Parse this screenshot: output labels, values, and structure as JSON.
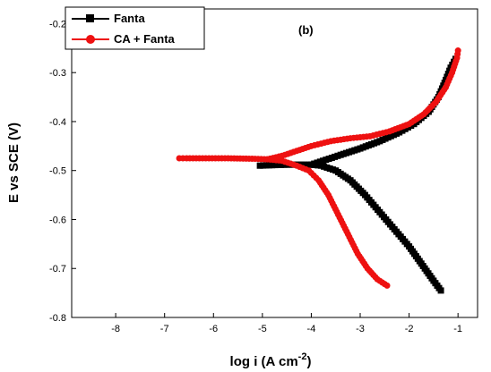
{
  "chart_data": {
    "type": "line",
    "panel_label": "(b)",
    "xlabel": "log i (A cm",
    "xlabel_sup": "-2",
    "xlabel_close": ")",
    "ylabel": "E vs SCE (V)",
    "xlim": [
      -8.9,
      -0.6
    ],
    "ylim": [
      -0.8,
      -0.17
    ],
    "xticks": [
      -8,
      -7,
      -6,
      -5,
      -4,
      -3,
      -2,
      -1
    ],
    "yticks": [
      -0.8,
      -0.7,
      -0.6,
      -0.5,
      -0.4,
      -0.3,
      -0.2
    ],
    "xtick_labels": [
      "-8",
      "-7",
      "-6",
      "-5",
      "-4",
      "-3",
      "-2",
      "-1"
    ],
    "ytick_labels": [
      "-0.8",
      "-0.7",
      "-0.6",
      "-0.5",
      "-0.4",
      "-0.3",
      "-0.2"
    ],
    "legend_position": "top-left",
    "grid": false,
    "series": [
      {
        "name": "Fanta",
        "color": "#000000",
        "marker": "square",
        "cathodic": [
          [
            -5.05,
            -0.49
          ],
          [
            -4.8,
            -0.489
          ],
          [
            -4.5,
            -0.488
          ],
          [
            -4.2,
            -0.488
          ],
          [
            -4.0,
            -0.488
          ],
          [
            -3.8,
            -0.49
          ],
          [
            -3.5,
            -0.5
          ],
          [
            -3.2,
            -0.52
          ],
          [
            -2.9,
            -0.55
          ],
          [
            -2.6,
            -0.585
          ],
          [
            -2.3,
            -0.62
          ],
          [
            -2.0,
            -0.655
          ],
          [
            -1.75,
            -0.69
          ],
          [
            -1.5,
            -0.725
          ],
          [
            -1.35,
            -0.745
          ]
        ],
        "anodic": [
          [
            -4.0,
            -0.488
          ],
          [
            -3.7,
            -0.478
          ],
          [
            -3.4,
            -0.468
          ],
          [
            -3.0,
            -0.455
          ],
          [
            -2.6,
            -0.44
          ],
          [
            -2.2,
            -0.422
          ],
          [
            -1.9,
            -0.405
          ],
          [
            -1.6,
            -0.38
          ],
          [
            -1.4,
            -0.35
          ],
          [
            -1.25,
            -0.315
          ],
          [
            -1.15,
            -0.29
          ],
          [
            -1.05,
            -0.272
          ]
        ]
      },
      {
        "name": "CA + Fanta",
        "color": "#ee1111",
        "marker": "circle",
        "cathodic": [
          [
            -6.7,
            -0.475
          ],
          [
            -6.55,
            -0.475
          ],
          [
            -5.7,
            -0.475
          ],
          [
            -5.15,
            -0.476
          ],
          [
            -4.9,
            -0.477
          ],
          [
            -4.6,
            -0.48
          ],
          [
            -4.3,
            -0.49
          ],
          [
            -4.05,
            -0.5
          ],
          [
            -3.85,
            -0.52
          ],
          [
            -3.65,
            -0.55
          ],
          [
            -3.45,
            -0.59
          ],
          [
            -3.25,
            -0.63
          ],
          [
            -3.05,
            -0.67
          ],
          [
            -2.85,
            -0.7
          ],
          [
            -2.65,
            -0.722
          ],
          [
            -2.45,
            -0.735
          ]
        ],
        "anodic": [
          [
            -4.9,
            -0.477
          ],
          [
            -4.6,
            -0.47
          ],
          [
            -4.3,
            -0.46
          ],
          [
            -4.0,
            -0.45
          ],
          [
            -3.6,
            -0.44
          ],
          [
            -3.2,
            -0.434
          ],
          [
            -2.8,
            -0.43
          ],
          [
            -2.4,
            -0.42
          ],
          [
            -2.0,
            -0.405
          ],
          [
            -1.7,
            -0.385
          ],
          [
            -1.45,
            -0.36
          ],
          [
            -1.25,
            -0.33
          ],
          [
            -1.12,
            -0.3
          ],
          [
            -1.02,
            -0.27
          ],
          [
            -1.0,
            -0.255
          ]
        ]
      }
    ]
  }
}
